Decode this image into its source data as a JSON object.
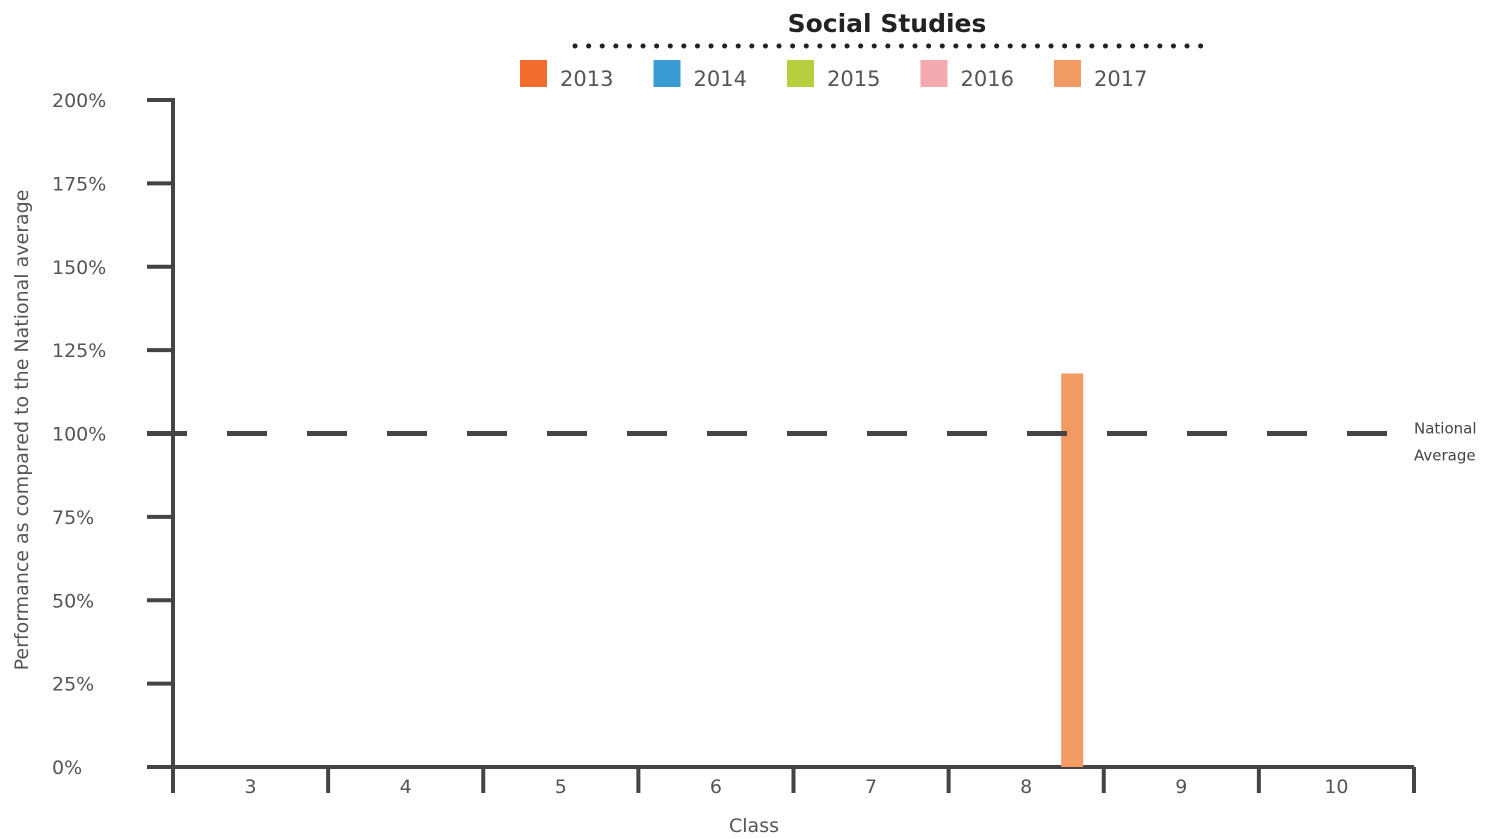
{
  "chart_data": {
    "type": "bar",
    "title": "Social Studies",
    "xlabel": "Class",
    "ylabel": "Performance as compared to the National average",
    "categories": [
      "3",
      "4",
      "5",
      "6",
      "7",
      "8",
      "9",
      "10"
    ],
    "ylim": [
      0,
      200
    ],
    "yticks": [
      0,
      25,
      50,
      75,
      100,
      125,
      150,
      175,
      200
    ],
    "ytick_labels": [
      "0%",
      "25%",
      "50%",
      "75%",
      "100%",
      "125%",
      "150%",
      "175%",
      "200%"
    ],
    "series": [
      {
        "name": "2013",
        "color": "#f26d2b",
        "values": [
          null,
          null,
          null,
          null,
          null,
          null,
          null,
          null
        ]
      },
      {
        "name": "2014",
        "color": "#3a9bd5",
        "values": [
          null,
          null,
          null,
          null,
          null,
          null,
          null,
          null
        ]
      },
      {
        "name": "2015",
        "color": "#b5cf3e",
        "values": [
          null,
          null,
          null,
          null,
          null,
          null,
          null,
          null
        ]
      },
      {
        "name": "2016",
        "color": "#f4a8b0",
        "values": [
          null,
          null,
          null,
          null,
          null,
          null,
          null,
          null
        ]
      },
      {
        "name": "2017",
        "color": "#f29a63",
        "values": [
          null,
          null,
          null,
          null,
          null,
          118,
          null,
          null
        ]
      }
    ],
    "reference_line": {
      "value": 100,
      "label_lines": [
        "National",
        "Average"
      ],
      "style": "dashed"
    },
    "legend_position": "top",
    "grid": false
  }
}
